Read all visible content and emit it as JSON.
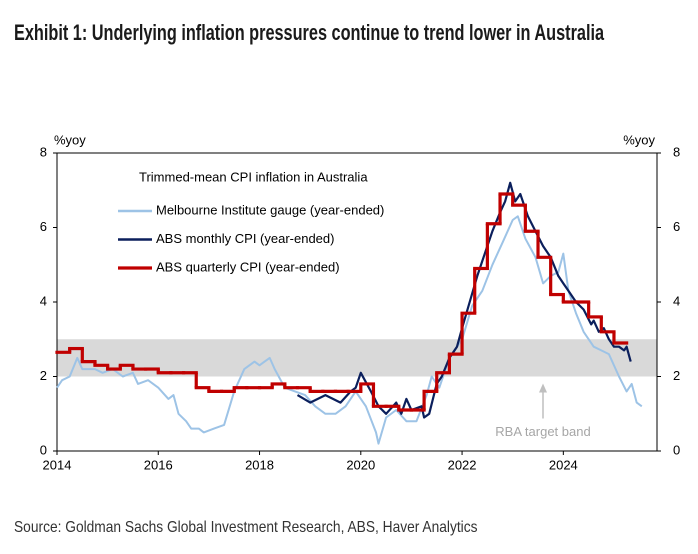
{
  "chart_data": {
    "type": "line",
    "title": "Exhibit 1: Underlying inflation pressures continue to trend lower in Australia",
    "legend_title": "Trimmed-mean CPI inflation in Australia",
    "y_label": "%yoy",
    "y2_label": "%yoy",
    "source": "Source: Goldman Sachs Global Investment Research, ABS, Haver Analytics",
    "xlim": [
      2014,
      2025.85
    ],
    "xticks": [
      2014,
      2016,
      2018,
      2020,
      2022,
      2024
    ],
    "ylim": [
      0,
      8
    ],
    "yticks": [
      0,
      2,
      4,
      6,
      8
    ],
    "y2lim": [
      0,
      8
    ],
    "y2ticks": [
      0,
      2,
      4,
      6,
      8
    ],
    "bands": [
      {
        "from": 2,
        "to": 3,
        "label": "RBA target band",
        "color": "#d9d9d9"
      }
    ],
    "series": [
      {
        "name": "Melbourne Institute gauge (year-ended)",
        "color": "#9dc3e6",
        "x": [
          2014.0,
          2014.1,
          2014.25,
          2014.4,
          2014.5,
          2014.75,
          2014.9,
          2015.1,
          2015.3,
          2015.5,
          2015.6,
          2015.8,
          2016.0,
          2016.2,
          2016.3,
          2016.4,
          2016.55,
          2016.65,
          2016.8,
          2016.9,
          2017.1,
          2017.3,
          2017.5,
          2017.7,
          2017.9,
          2018.0,
          2018.1,
          2018.2,
          2018.3,
          2018.5,
          2018.7,
          2018.9,
          2019.1,
          2019.3,
          2019.5,
          2019.7,
          2019.9,
          2020.1,
          2020.3,
          2020.35,
          2020.5,
          2020.7,
          2020.9,
          2021.1,
          2021.3,
          2021.4,
          2021.55,
          2021.75,
          2022.0,
          2022.2,
          2022.4,
          2022.6,
          2022.8,
          2023.0,
          2023.1,
          2023.25,
          2023.45,
          2023.6,
          2023.75,
          2023.9,
          2024.0,
          2024.1,
          2024.25,
          2024.4,
          2024.6,
          2024.75,
          2024.9,
          2025.1,
          2025.25,
          2025.35,
          2025.45,
          2025.55
        ],
        "values": [
          1.7,
          1.9,
          2.0,
          2.5,
          2.2,
          2.2,
          2.1,
          2.2,
          2.0,
          2.1,
          1.8,
          1.9,
          1.7,
          1.4,
          1.5,
          1.0,
          0.8,
          0.6,
          0.6,
          0.5,
          0.6,
          0.7,
          1.6,
          2.2,
          2.4,
          2.3,
          2.4,
          2.5,
          2.2,
          1.7,
          1.6,
          1.5,
          1.2,
          1.0,
          1.0,
          1.2,
          1.6,
          1.2,
          0.5,
          0.2,
          0.9,
          1.1,
          0.8,
          0.8,
          1.5,
          2.0,
          1.7,
          2.5,
          3.0,
          3.9,
          4.3,
          5.0,
          5.6,
          6.2,
          6.3,
          5.7,
          5.2,
          4.5,
          4.7,
          4.8,
          5.3,
          4.3,
          3.7,
          3.2,
          2.8,
          2.7,
          2.6,
          2.0,
          1.6,
          1.8,
          1.3,
          1.2
        ]
      },
      {
        "name": "ABS monthly CPI (year-ended)",
        "color": "#0b1f5c",
        "x": [
          2018.75,
          2019.0,
          2019.3,
          2019.6,
          2019.8,
          2019.9,
          2020.0,
          2020.2,
          2020.35,
          2020.5,
          2020.7,
          2020.8,
          2020.9,
          2021.0,
          2021.2,
          2021.25,
          2021.35,
          2021.5,
          2021.6,
          2021.75,
          2021.9,
          2022.0,
          2022.15,
          2022.3,
          2022.45,
          2022.6,
          2022.75,
          2022.85,
          2022.95,
          2023.05,
          2023.15,
          2023.3,
          2023.45,
          2023.6,
          2023.75,
          2023.9,
          2024.0,
          2024.1,
          2024.25,
          2024.4,
          2024.55,
          2024.6,
          2024.7,
          2024.8,
          2024.9,
          2025.0,
          2025.1,
          2025.2,
          2025.25,
          2025.33
        ],
        "values": [
          1.5,
          1.3,
          1.5,
          1.3,
          1.6,
          1.7,
          2.1,
          1.6,
          1.2,
          1.0,
          1.3,
          1.0,
          1.4,
          1.1,
          1.2,
          0.9,
          1.0,
          1.8,
          2.0,
          2.5,
          2.8,
          3.3,
          4.0,
          4.7,
          5.3,
          5.9,
          6.4,
          6.7,
          7.2,
          6.7,
          6.9,
          6.3,
          5.9,
          5.5,
          5.2,
          4.7,
          4.5,
          4.3,
          4.0,
          3.8,
          3.4,
          3.5,
          3.2,
          3.3,
          3.0,
          2.8,
          2.8,
          2.7,
          2.8,
          2.4
        ]
      },
      {
        "name": "ABS quarterly CPI (year-ended)",
        "color": "#c00000",
        "step": true,
        "x": [
          2014.0,
          2014.25,
          2014.5,
          2014.75,
          2015.0,
          2015.25,
          2015.5,
          2015.75,
          2016.0,
          2016.25,
          2016.5,
          2016.75,
          2017.0,
          2017.25,
          2017.5,
          2017.75,
          2018.0,
          2018.25,
          2018.5,
          2018.75,
          2019.0,
          2019.25,
          2019.5,
          2019.75,
          2020.0,
          2020.25,
          2020.5,
          2020.75,
          2021.0,
          2021.25,
          2021.5,
          2021.75,
          2022.0,
          2022.25,
          2022.5,
          2022.75,
          2023.0,
          2023.25,
          2023.5,
          2023.75,
          2024.0,
          2024.25,
          2024.5,
          2024.75,
          2025.0
        ],
        "values": [
          2.65,
          2.75,
          2.4,
          2.3,
          2.2,
          2.3,
          2.2,
          2.2,
          2.1,
          2.1,
          2.1,
          1.7,
          1.6,
          1.6,
          1.7,
          1.7,
          1.7,
          1.8,
          1.7,
          1.7,
          1.6,
          1.6,
          1.6,
          1.6,
          1.8,
          1.2,
          1.2,
          1.1,
          1.1,
          1.6,
          2.1,
          2.6,
          3.7,
          4.9,
          6.1,
          6.9,
          6.6,
          5.9,
          5.2,
          4.2,
          4.0,
          4.0,
          3.6,
          3.2,
          2.9
        ]
      }
    ]
  }
}
